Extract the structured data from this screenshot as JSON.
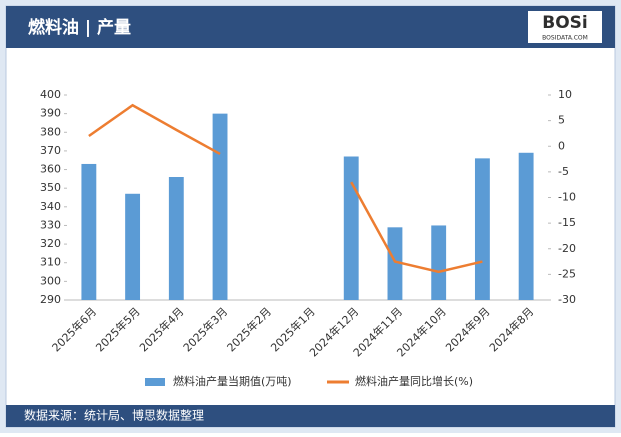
{
  "chart_data": {
    "type": "bar_line",
    "title": "燃料油 | 产量",
    "logo": "BOSi",
    "logo_site": "BOSIDATA.COM",
    "source": "数据来源：统计局、博思数据整理",
    "categories": [
      "2025年6月",
      "2025年5月",
      "2025年4月",
      "2025年3月",
      "2025年2月",
      "2025年1月",
      "2024年12月",
      "2024年11月",
      "2024年10月",
      "2024年9月",
      "2024年8月"
    ],
    "series": [
      {
        "name": "燃料油产量当期值(万吨)",
        "color": "#5b9bd5",
        "type": "bar",
        "values": [
          363,
          347,
          356,
          390,
          null,
          null,
          367,
          329,
          330,
          366,
          369
        ]
      },
      {
        "name": "燃料油产量同比增长(%)",
        "color": "#ed7d31",
        "type": "line",
        "axis": "y2",
        "values": [
          2,
          8,
          3.2,
          -1.5,
          null,
          null,
          -7,
          -22.5,
          -24.5,
          -22.5,
          null
        ]
      }
    ],
    "ylim": [
      290,
      400
    ],
    "yticks": [
      290,
      300,
      310,
      320,
      330,
      340,
      350,
      360,
      370,
      380,
      390,
      400
    ],
    "y2lim": [
      -30,
      10
    ],
    "y2ticks": [
      -30,
      -25,
      -20,
      -15,
      -10,
      -5,
      0,
      5,
      10
    ],
    "legend": "bottom"
  }
}
